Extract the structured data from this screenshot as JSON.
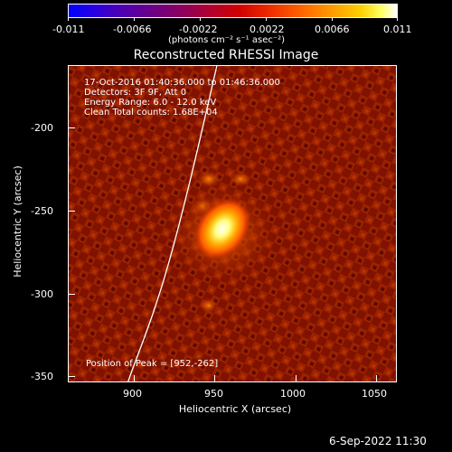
{
  "colorbar": {
    "tick_labels": [
      "-0.011",
      "-0.0066",
      "-0.0022",
      "0.0022",
      "0.0066",
      "0.011"
    ],
    "units": "(photons cm⁻² s⁻¹ asec⁻²)"
  },
  "title": "Reconstructed RHESSI Image",
  "info": {
    "line1": "17-Oct-2016 01:40:36.000 to 01:46:36.000",
    "line2": "Detectors: 3F 9F, Att 0",
    "line3": "Energy Range: 6.0 - 12.0 keV",
    "line4": "Clean     Total counts: 1.68E+04",
    "peak": "Position of Peak = [952,-262]"
  },
  "axes": {
    "xlabel": "Heliocentric X (arcsec)",
    "ylabel": "Heliocentric Y (arcsec)",
    "x_ticks": [
      "900",
      "950",
      "1000",
      "1050"
    ],
    "y_ticks": [
      "-200",
      "-250",
      "-300",
      "-350"
    ]
  },
  "footer": {
    "timestamp": "6-Sep-2022 11:30"
  },
  "colors": {
    "background": "#000000",
    "foreground": "#ffffff",
    "colormap": "red-temperature"
  }
}
